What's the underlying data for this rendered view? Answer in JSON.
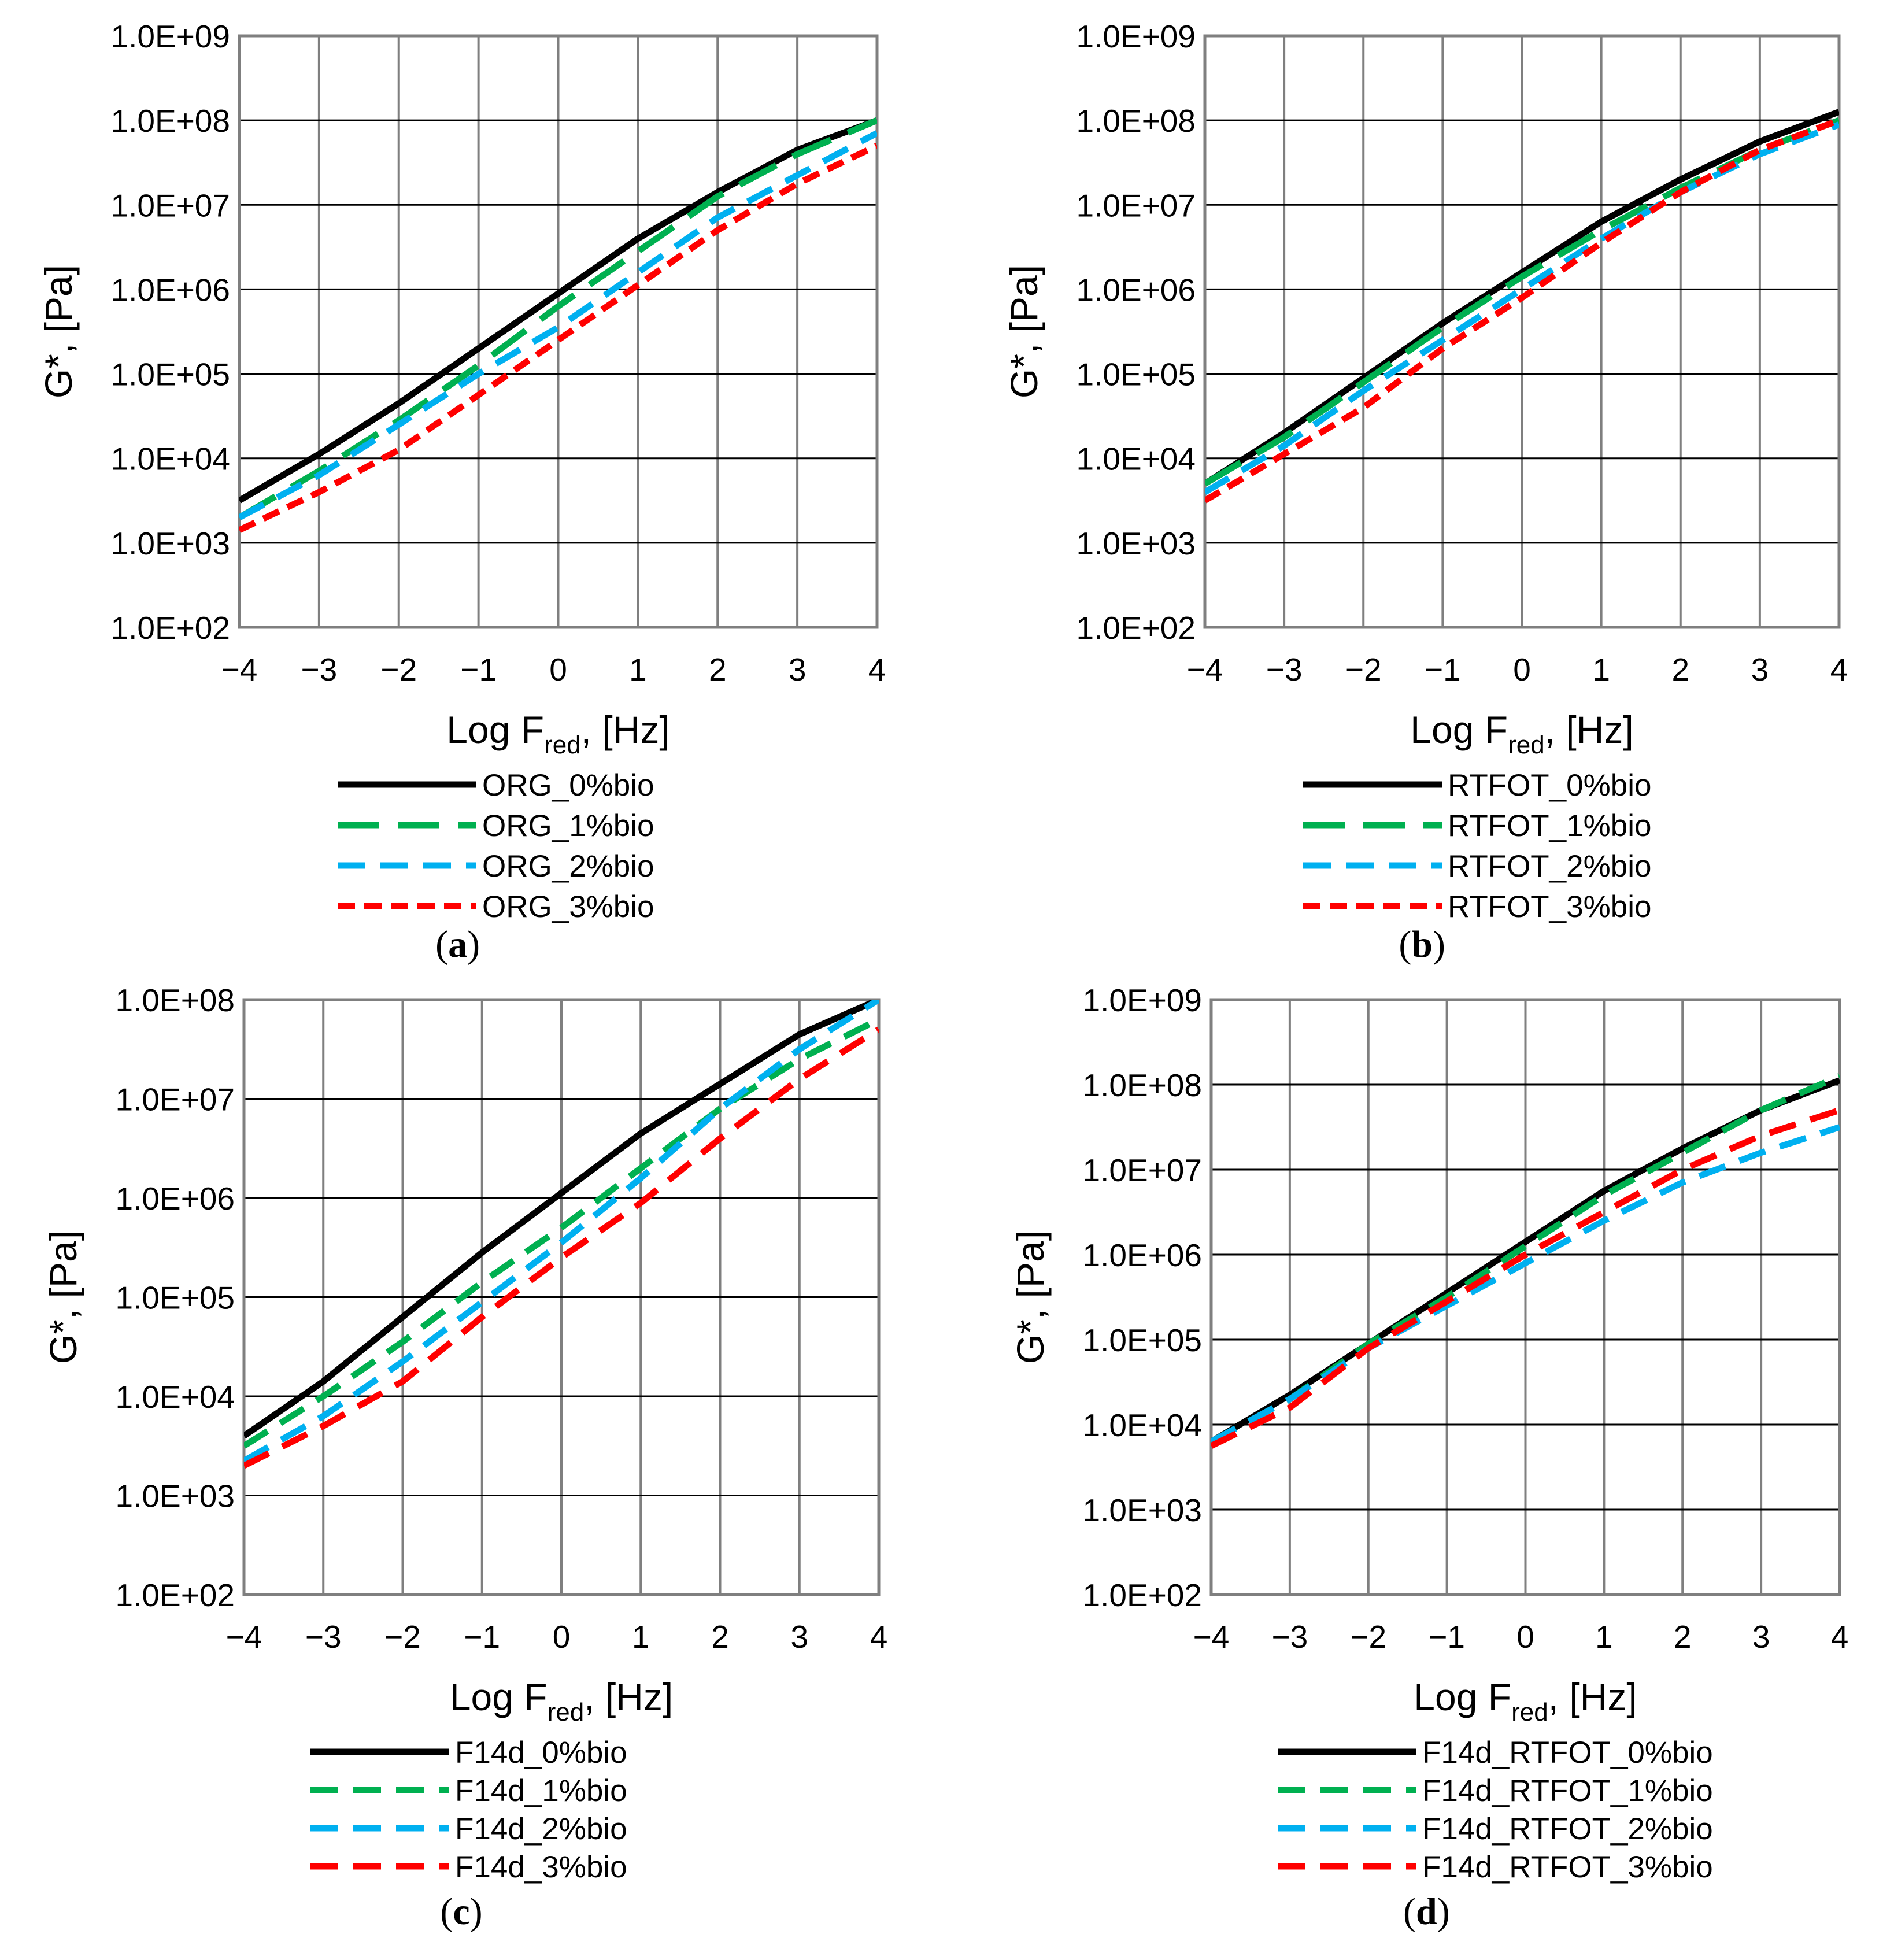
{
  "colors": {
    "black": "#000000",
    "green": "#00B050",
    "blue": "#00B0F0",
    "red": "#FF0000",
    "grid": "#7F7F7F"
  },
  "chart_data": [
    {
      "panel": "a",
      "caption_letter": "a",
      "type": "line",
      "xlabel_main": "Log F",
      "xlabel_sub": "red",
      "xlabel_tail": ", [Hz]",
      "ylabel": "G*, [Pa]",
      "x_ticks": [
        "−4",
        "−3",
        "−2",
        "−1",
        "0",
        "1",
        "2",
        "3",
        "4"
      ],
      "y_ticks": [
        "1.0E+02",
        "1.0E+03",
        "1.0E+04",
        "1.0E+05",
        "1.0E+06",
        "1.0E+07",
        "1.0E+08",
        "1.0E+09"
      ],
      "xlim": [
        -4,
        4
      ],
      "ylim_log10": [
        2,
        9
      ],
      "series": [
        {
          "name": "ORG_0%bio",
          "color": "black",
          "style": "solid",
          "x": [
            -4,
            -3,
            -2,
            -1,
            0,
            1,
            2,
            3,
            4
          ],
          "log10_y": [
            3.5,
            4.05,
            4.65,
            5.3,
            5.95,
            6.6,
            7.15,
            7.65,
            8.0
          ]
        },
        {
          "name": "ORG_1%bio",
          "color": "green",
          "style": "longdash",
          "x": [
            -4,
            -3,
            -2,
            -1,
            0,
            1,
            2,
            3,
            4
          ],
          "log10_y": [
            3.3,
            3.85,
            4.45,
            5.1,
            5.8,
            6.45,
            7.1,
            7.6,
            8.0
          ]
        },
        {
          "name": "ORG_2%bio",
          "color": "blue",
          "style": "dash",
          "x": [
            -4,
            -3,
            -2,
            -1,
            0,
            1,
            2,
            3,
            4
          ],
          "log10_y": [
            3.3,
            3.8,
            4.4,
            5.0,
            5.55,
            6.2,
            6.85,
            7.35,
            7.85
          ]
        },
        {
          "name": "ORG_3%bio",
          "color": "red",
          "style": "shortdash",
          "x": [
            -4,
            -3,
            -2,
            -1,
            0,
            1,
            2,
            3,
            4
          ],
          "log10_y": [
            3.15,
            3.6,
            4.1,
            4.75,
            5.4,
            6.05,
            6.7,
            7.25,
            7.7
          ]
        }
      ]
    },
    {
      "panel": "b",
      "caption_letter": "b",
      "type": "line",
      "xlabel_main": "Log F",
      "xlabel_sub": "red",
      "xlabel_tail": ", [Hz]",
      "ylabel": "G*, [Pa]",
      "x_ticks": [
        "−4",
        "−3",
        "−2",
        "−1",
        "0",
        "1",
        "2",
        "3",
        "4"
      ],
      "y_ticks": [
        "1.0E+02",
        "1.0E+03",
        "1.0E+04",
        "1.0E+05",
        "1.0E+06",
        "1.0E+07",
        "1.0E+08",
        "1.0E+09"
      ],
      "xlim": [
        -4,
        4
      ],
      "ylim_log10": [
        2,
        9
      ],
      "series": [
        {
          "name": "RTFOT_0%bio",
          "color": "black",
          "style": "solid",
          "x": [
            -4,
            -3,
            -2,
            -1,
            0,
            1,
            2,
            3,
            4
          ],
          "log10_y": [
            3.7,
            4.3,
            4.95,
            5.6,
            6.2,
            6.8,
            7.3,
            7.75,
            8.1
          ]
        },
        {
          "name": "RTFOT_1%bio",
          "color": "green",
          "style": "longdash",
          "x": [
            -4,
            -3,
            -2,
            -1,
            0,
            1,
            2,
            3,
            4
          ],
          "log10_y": [
            3.7,
            4.25,
            4.9,
            5.55,
            6.15,
            6.7,
            7.2,
            7.65,
            8.0
          ]
        },
        {
          "name": "RTFOT_2%bio",
          "color": "blue",
          "style": "dash",
          "x": [
            -4,
            -3,
            -2,
            -1,
            0,
            1,
            2,
            3,
            4
          ],
          "log10_y": [
            3.6,
            4.15,
            4.8,
            5.4,
            6.0,
            6.6,
            7.15,
            7.6,
            7.95
          ]
        },
        {
          "name": "RTFOT_3%bio",
          "color": "red",
          "style": "shortdash",
          "x": [
            -4,
            -3,
            -2,
            -1,
            0,
            1,
            2,
            3,
            4
          ],
          "log10_y": [
            3.5,
            4.05,
            4.6,
            5.3,
            5.9,
            6.55,
            7.15,
            7.65,
            8.0
          ]
        }
      ]
    },
    {
      "panel": "c",
      "caption_letter": "c",
      "type": "line",
      "xlabel_main": "Log F",
      "xlabel_sub": "red",
      "xlabel_tail": ", [Hz]",
      "ylabel": "G*, [Pa]",
      "x_ticks": [
        "−4",
        "−3",
        "−2",
        "−1",
        "0",
        "1",
        "2",
        "3",
        "4"
      ],
      "y_ticks": [
        "1.0E+02",
        "1.0E+03",
        "1.0E+04",
        "1.0E+05",
        "1.0E+06",
        "1.0E+07",
        "1.0E+08"
      ],
      "xlim": [
        -4,
        4
      ],
      "ylim_log10": [
        2,
        8
      ],
      "series": [
        {
          "name": "F14d_0%bio",
          "color": "black",
          "style": "solid",
          "x": [
            -4,
            -3,
            -2,
            -1,
            0,
            1,
            2,
            3,
            4
          ],
          "log10_y": [
            3.6,
            4.15,
            4.8,
            5.45,
            6.05,
            6.65,
            7.15,
            7.65,
            8.0
          ]
        },
        {
          "name": "F14d_1%bio",
          "color": "green",
          "style": "dash",
          "x": [
            -4,
            -3,
            -2,
            -1,
            0,
            1,
            2,
            3,
            4
          ],
          "log10_y": [
            3.5,
            4.0,
            4.55,
            5.15,
            5.7,
            6.3,
            6.9,
            7.4,
            7.8
          ]
        },
        {
          "name": "F14d_2%bio",
          "color": "blue",
          "style": "dash",
          "x": [
            -4,
            -3,
            -2,
            -1,
            0,
            1,
            2,
            3,
            4
          ],
          "log10_y": [
            3.35,
            3.8,
            4.35,
            4.95,
            5.55,
            6.2,
            6.9,
            7.5,
            8.0
          ]
        },
        {
          "name": "F14d_3%bio",
          "color": "red",
          "style": "dash",
          "x": [
            -4,
            -3,
            -2,
            -1,
            0,
            1,
            2,
            3,
            4
          ],
          "log10_y": [
            3.3,
            3.7,
            4.15,
            4.8,
            5.4,
            5.95,
            6.6,
            7.2,
            7.7
          ]
        }
      ]
    },
    {
      "panel": "d",
      "caption_letter": "d",
      "type": "line",
      "xlabel_main": "Log F",
      "xlabel_sub": "red",
      "xlabel_tail": ", [Hz]",
      "ylabel": "G*, [Pa]",
      "x_ticks": [
        "−4",
        "−3",
        "−2",
        "−1",
        "0",
        "1",
        "2",
        "3",
        "4"
      ],
      "y_ticks": [
        "1.0E+02",
        "1.0E+03",
        "1.0E+04",
        "1.0E+05",
        "1.0E+06",
        "1.0E+07",
        "1.0E+08",
        "1.0E+09"
      ],
      "xlim": [
        -4,
        4
      ],
      "ylim_log10": [
        2,
        9
      ],
      "series": [
        {
          "name": "F14d_RTFOT_0%bio",
          "color": "black",
          "style": "solid",
          "x": [
            -4,
            -3,
            -2,
            -1,
            0,
            1,
            2,
            3,
            4
          ],
          "log10_y": [
            3.8,
            4.35,
            4.95,
            5.55,
            6.15,
            6.75,
            7.25,
            7.7,
            8.05
          ]
        },
        {
          "name": "F14d_RTFOT_1%bio",
          "color": "green",
          "style": "dash",
          "x": [
            -4,
            -3,
            -2,
            -1,
            0,
            1,
            2,
            3,
            4
          ],
          "log10_y": [
            3.8,
            4.3,
            4.95,
            5.5,
            6.1,
            6.7,
            7.2,
            7.7,
            8.1
          ]
        },
        {
          "name": "F14d_RTFOT_2%bio",
          "color": "blue",
          "style": "dash",
          "x": [
            -4,
            -3,
            -2,
            -1,
            0,
            1,
            2,
            3,
            4
          ],
          "log10_y": [
            3.8,
            4.3,
            4.9,
            5.4,
            5.9,
            6.4,
            6.85,
            7.2,
            7.5
          ]
        },
        {
          "name": "F14d_RTFOT_3%bio",
          "color": "red",
          "style": "dash",
          "x": [
            -4,
            -3,
            -2,
            -1,
            0,
            1,
            2,
            3,
            4
          ],
          "log10_y": [
            3.75,
            4.2,
            4.9,
            5.45,
            6.0,
            6.5,
            7.0,
            7.4,
            7.7
          ]
        }
      ]
    }
  ]
}
